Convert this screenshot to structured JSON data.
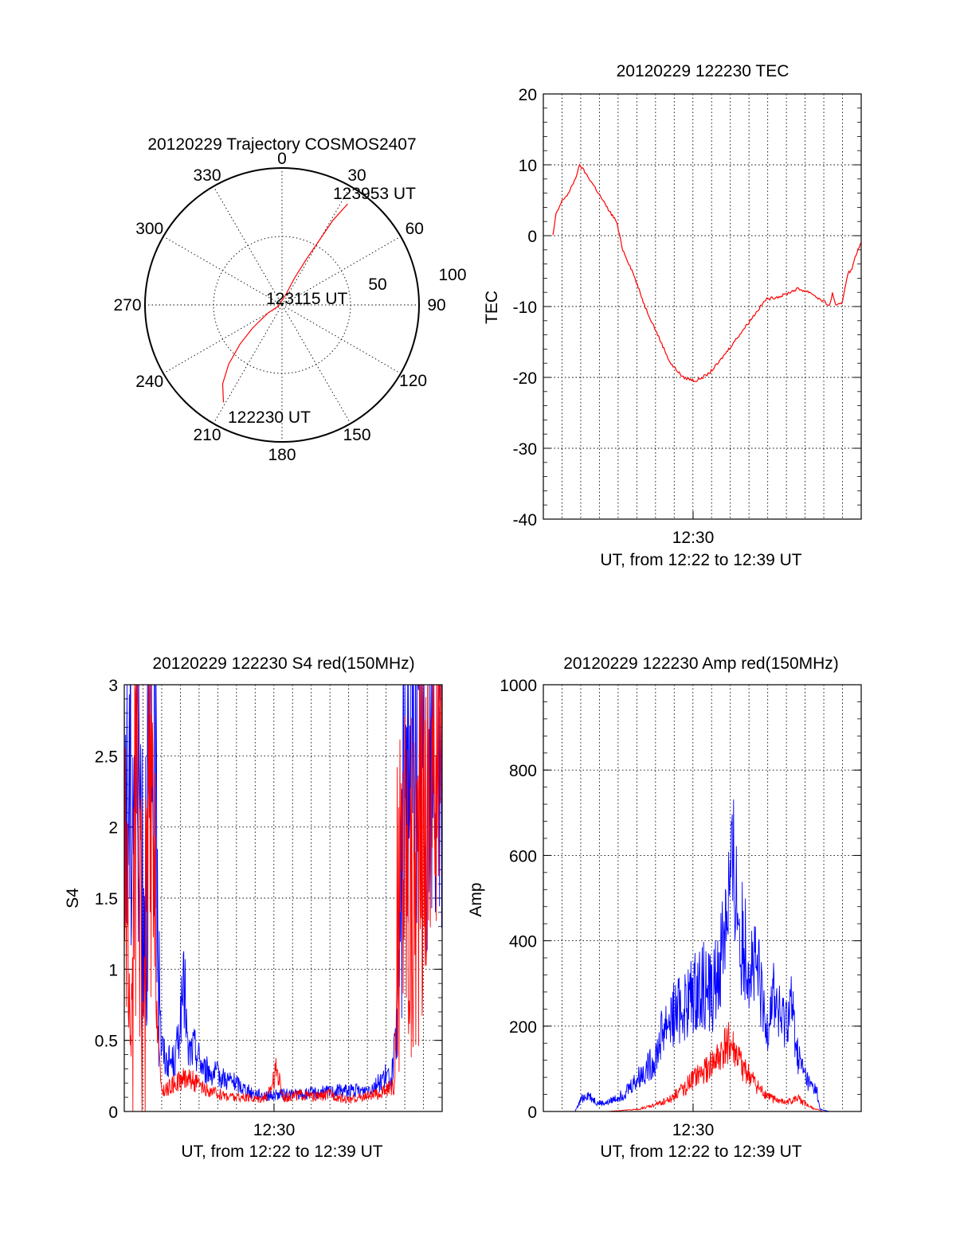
{
  "colors": {
    "red": "#ff0000",
    "blue": "#0000ff",
    "axis": "#000000"
  },
  "chart_data": [
    {
      "id": "polar",
      "type": "polar-trajectory",
      "title": "20120229 Trajectory COSMOS2407",
      "angle_labels": [
        "0",
        "30",
        "60",
        "90",
        "120",
        "150",
        "180",
        "210",
        "240",
        "270",
        "300",
        "330"
      ],
      "radius_labels": [
        "50",
        "100"
      ],
      "trajectory": [
        [
          211,
          83
        ],
        [
          217,
          72
        ],
        [
          222,
          58
        ],
        [
          227,
          42
        ],
        [
          232,
          27
        ],
        [
          240,
          12
        ],
        [
          250,
          3
        ],
        [
          20,
          8
        ],
        [
          25,
          22
        ],
        [
          28,
          38
        ],
        [
          30,
          55
        ],
        [
          31,
          72
        ],
        [
          33,
          88
        ]
      ],
      "annotations": [
        "123953 UT",
        "123115 UT",
        "122230 UT"
      ]
    },
    {
      "id": "tec",
      "type": "line",
      "title": "20120229 122230 TEC",
      "ylabel": "TEC",
      "xlabel": "UT, from 12:22 to 12:39 UT",
      "xtick_label": "12:30",
      "ylim": [
        -40,
        20
      ],
      "yticks": [
        "20",
        "10",
        "0",
        "-10",
        "-20",
        "-30",
        "-40"
      ],
      "series": [
        {
          "color": "#ff0000",
          "x": [
            0.03,
            0.04,
            0.06,
            0.08,
            0.1,
            0.115,
            0.13,
            0.16,
            0.2,
            0.23,
            0.25,
            0.28,
            0.32,
            0.36,
            0.4,
            0.44,
            0.48,
            0.52,
            0.55,
            0.6,
            0.65,
            0.7,
            0.75,
            0.8,
            0.84,
            0.87,
            0.89,
            0.9,
            0.91,
            0.92,
            0.94,
            0.95,
            0.96,
            0.97,
            0.98,
            0.99,
            1.0
          ],
          "y": [
            0,
            3,
            5,
            6,
            8,
            10,
            9,
            7,
            4,
            2,
            -2,
            -5,
            -10,
            -14,
            -18,
            -20,
            -20.5,
            -19.5,
            -18,
            -15,
            -12,
            -9,
            -8.5,
            -7.5,
            -8,
            -9,
            -9.5,
            -10,
            -8,
            -10,
            -9.5,
            -7,
            -5,
            -5,
            -3,
            -2,
            -1
          ]
        }
      ]
    },
    {
      "id": "s4",
      "type": "line",
      "title": "20120229 122230 S4 red(150MHz)",
      "ylabel": "S4",
      "xlabel": "UT, from 12:22 to 12:39 UT",
      "xtick_label": "12:30",
      "ylim": [
        0,
        3
      ],
      "yticks": [
        "3",
        "2.5",
        "2",
        "1.5",
        "1",
        "0.5",
        "0"
      ],
      "series": [
        {
          "color": "#0000ff",
          "x": [
            0.0,
            0.02,
            0.04,
            0.06,
            0.08,
            0.1,
            0.115,
            0.13,
            0.16,
            0.19,
            0.2,
            0.22,
            0.25,
            0.3,
            0.35,
            0.4,
            0.45,
            0.5,
            0.55,
            0.6,
            0.65,
            0.7,
            0.75,
            0.8,
            0.82,
            0.84,
            0.86,
            0.88,
            0.9,
            0.95,
            1.0
          ],
          "y": [
            2.5,
            2.2,
            2.8,
            1.6,
            2.3,
            2.6,
            0.5,
            0.35,
            0.35,
            0.9,
            0.4,
            0.45,
            0.3,
            0.25,
            0.2,
            0.13,
            0.11,
            0.12,
            0.12,
            0.13,
            0.14,
            0.15,
            0.14,
            0.2,
            0.25,
            0.22,
            0.6,
            2.5,
            2.7,
            2.4,
            2.6
          ]
        },
        {
          "color": "#ff0000",
          "x": [
            0.0,
            0.02,
            0.04,
            0.06,
            0.08,
            0.1,
            0.115,
            0.13,
            0.16,
            0.2,
            0.25,
            0.3,
            0.35,
            0.4,
            0.45,
            0.48,
            0.5,
            0.55,
            0.6,
            0.65,
            0.7,
            0.75,
            0.8,
            0.85,
            0.86,
            0.88,
            0.9,
            0.95,
            1.0
          ],
          "y": [
            2.0,
            0.4,
            2.5,
            0.6,
            2.2,
            0.9,
            0.15,
            0.15,
            0.2,
            0.25,
            0.15,
            0.12,
            0.1,
            0.09,
            0.1,
            0.3,
            0.1,
            0.12,
            0.1,
            0.12,
            0.08,
            0.1,
            0.12,
            0.18,
            1.2,
            2.0,
            1.5,
            2.2,
            2.8
          ]
        }
      ]
    },
    {
      "id": "amp",
      "type": "line",
      "title": "20120229 122230 Amp red(150MHz)",
      "ylabel": "Amp",
      "xlabel": "UT, from 12:22 to 12:39 UT",
      "xtick_label": "12:30",
      "ylim": [
        0,
        1000
      ],
      "yticks": [
        "1000",
        "800",
        "600",
        "400",
        "200",
        "0"
      ],
      "series": [
        {
          "color": "#0000ff",
          "x": [
            0,
            0.1,
            0.12,
            0.14,
            0.17,
            0.2,
            0.25,
            0.3,
            0.35,
            0.38,
            0.4,
            0.45,
            0.5,
            0.53,
            0.55,
            0.58,
            0.6,
            0.62,
            0.65,
            0.68,
            0.7,
            0.72,
            0.75,
            0.78,
            0.8,
            0.82,
            0.84,
            0.86,
            0.87,
            0.9,
            1.0
          ],
          "y": [
            0,
            0,
            30,
            40,
            20,
            20,
            40,
            80,
            120,
            200,
            220,
            250,
            300,
            280,
            320,
            500,
            550,
            420,
            350,
            300,
            180,
            280,
            200,
            250,
            130,
            90,
            60,
            50,
            5,
            0,
            0
          ]
        },
        {
          "color": "#ff0000",
          "x": [
            0,
            0.2,
            0.3,
            0.35,
            0.4,
            0.45,
            0.5,
            0.55,
            0.58,
            0.6,
            0.62,
            0.65,
            0.68,
            0.72,
            0.76,
            0.8,
            0.84,
            0.86,
            0.88,
            1.0
          ],
          "y": [
            0,
            0,
            5,
            15,
            30,
            60,
            90,
            120,
            160,
            140,
            110,
            80,
            50,
            30,
            20,
            30,
            10,
            5,
            0,
            0
          ]
        }
      ]
    }
  ]
}
